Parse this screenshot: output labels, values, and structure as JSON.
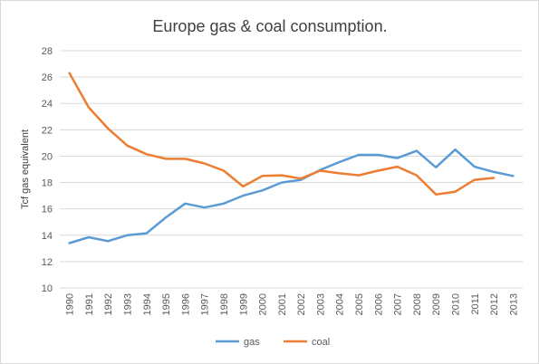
{
  "chart_data": {
    "type": "line",
    "title": "Europe gas & coal consumption.",
    "xlabel": "",
    "ylabel": "Tcf gas equivalent",
    "ylim": [
      10,
      28
    ],
    "yticks": [
      "10",
      "12",
      "14",
      "16",
      "18",
      "20",
      "22",
      "24",
      "26",
      "28"
    ],
    "categories": [
      "1990",
      "1991",
      "1992",
      "1993",
      "1994",
      "1995",
      "1996",
      "1997",
      "1998",
      "1999",
      "2000",
      "2001",
      "2002",
      "2003",
      "2004",
      "2005",
      "2006",
      "2007",
      "2008",
      "2009",
      "2010",
      "2011",
      "2012",
      "2013"
    ],
    "grid": "horizontal",
    "legend_position": "bottom",
    "series": [
      {
        "name": "gas",
        "color": "#5B9BD5",
        "values": [
          13.4,
          13.85,
          13.55,
          14.0,
          14.15,
          15.35,
          16.4,
          16.1,
          16.4,
          17.0,
          17.4,
          18.0,
          18.2,
          18.95,
          19.55,
          20.1,
          20.1,
          19.85,
          20.4,
          19.15,
          20.5,
          19.2,
          18.8,
          18.5
        ]
      },
      {
        "name": "coal",
        "color": "#ED7D31",
        "values": [
          26.3,
          23.7,
          22.1,
          20.8,
          20.15,
          19.8,
          19.8,
          19.45,
          18.9,
          17.7,
          18.5,
          18.55,
          18.3,
          18.9,
          18.7,
          18.55,
          18.9,
          19.2,
          18.55,
          17.1,
          17.3,
          18.2,
          18.35,
          null
        ]
      }
    ]
  }
}
